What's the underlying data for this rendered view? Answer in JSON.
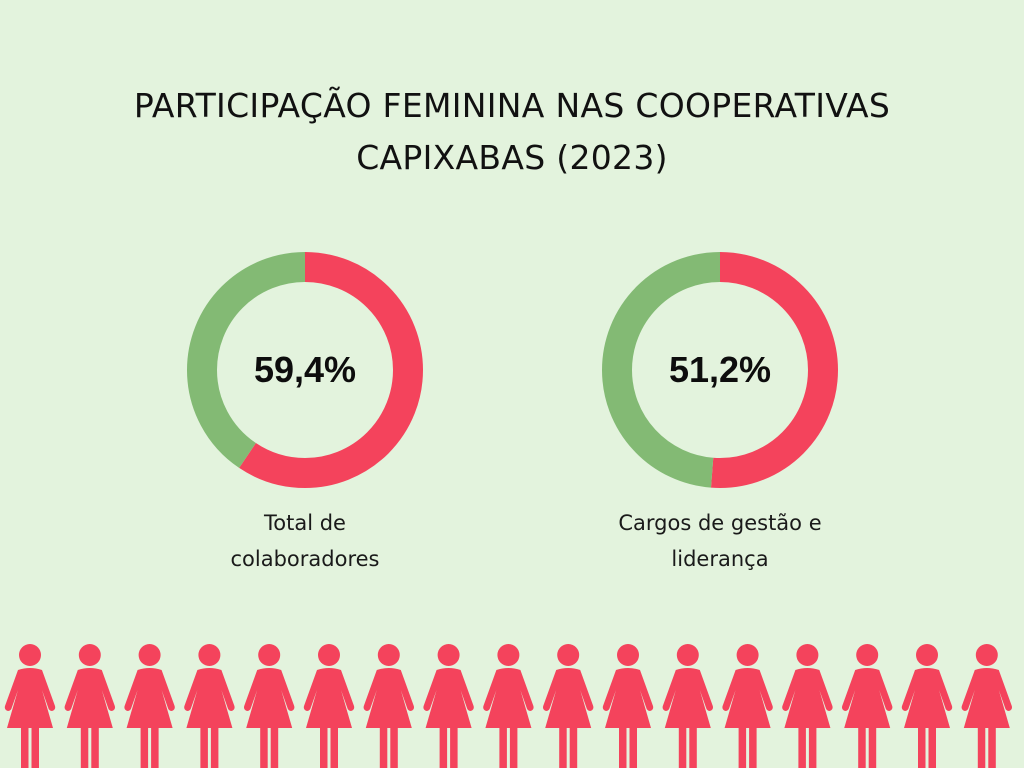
{
  "title_lines": [
    "PARTICIPAÇÃO FEMININA NAS COOPERATIVAS",
    "CAPIXABAS (2023)"
  ],
  "colors": {
    "background": "#e3f3dd",
    "women": "#f4435c",
    "remainder": "#83ba74"
  },
  "chart_data": [
    {
      "type": "pie",
      "title": "",
      "center_label": "59,4%",
      "caption_lines": [
        "Total de",
        "colaboradores"
      ],
      "slices": [
        {
          "value": 59.4
        },
        {
          "value": 40.6
        }
      ]
    },
    {
      "type": "pie",
      "title": "",
      "center_label": "51,2%",
      "caption_lines": [
        "Cargos de gestão e",
        "liderança"
      ],
      "slices": [
        {
          "value": 51.2
        },
        {
          "value": 48.8
        }
      ]
    }
  ],
  "decoration": {
    "icon": "woman-figure-icon",
    "count": 17
  }
}
